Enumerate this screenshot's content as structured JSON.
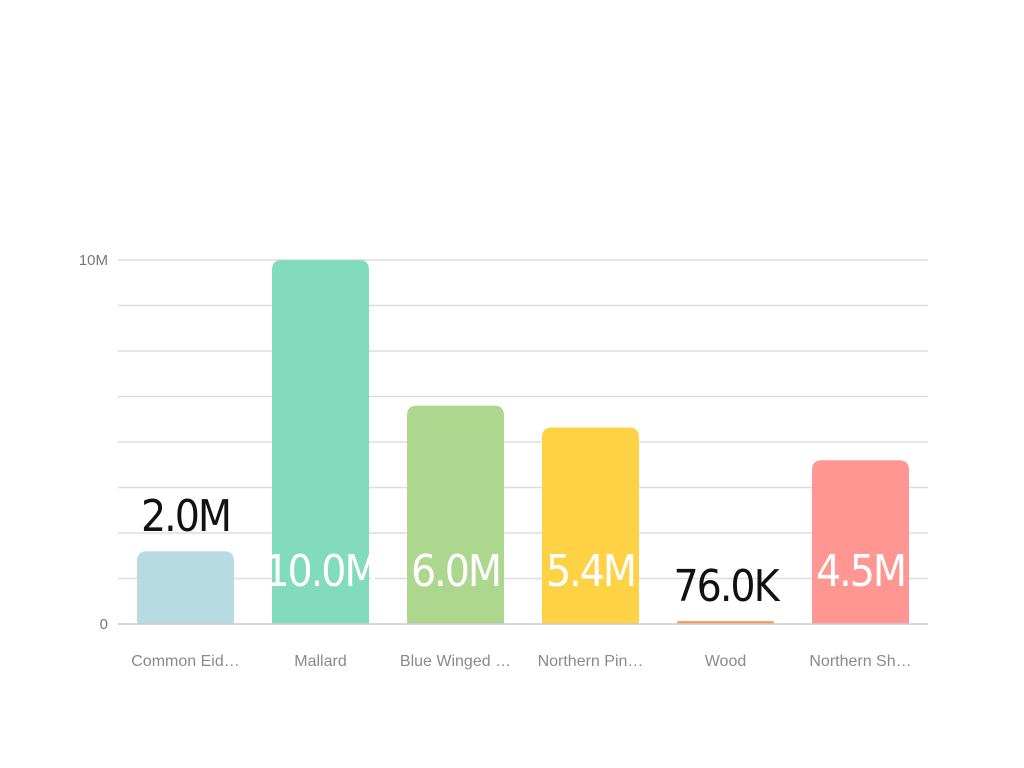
{
  "chart_data": {
    "type": "bar",
    "categories": [
      "Common Eid…",
      "Mallard",
      "Blue Winged …",
      "Northern Pin…",
      "Wood",
      "Northern Sh…"
    ],
    "values": [
      2000000,
      10000000,
      6000000,
      5400000,
      76000,
      4500000
    ],
    "data_labels": [
      "2.0M",
      "10.0M",
      "6.0M",
      "5.4M",
      "76.0K",
      "4.5M"
    ],
    "colors": [
      "#b7dbe3",
      "#82dbbd",
      "#add78e",
      "#ffd145",
      "#f7a15b",
      "#ff9691"
    ],
    "y_ticks": [
      {
        "value": 0,
        "label": "0"
      },
      {
        "value": 10000000,
        "label": "10M"
      }
    ],
    "ylim": [
      0,
      10000000
    ],
    "grid": true,
    "title": "",
    "xlabel": "",
    "ylabel": ""
  }
}
